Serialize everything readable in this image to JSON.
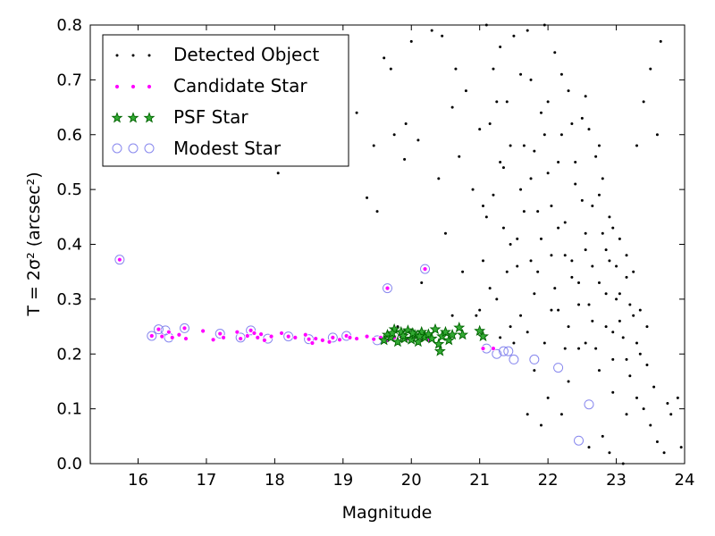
{
  "chart_data": {
    "type": "scatter",
    "xlabel": "Magnitude",
    "ylabel": "T = 2σ² (arcsec²)",
    "xlim": [
      15.3,
      24.0
    ],
    "ylim": [
      0.0,
      0.8
    ],
    "xticks": [
      16,
      17,
      18,
      19,
      20,
      21,
      22,
      23,
      24
    ],
    "yticks": [
      0.0,
      0.1,
      0.2,
      0.3,
      0.4,
      0.5,
      0.6,
      0.7,
      0.8
    ],
    "xtick_labels": [
      "16",
      "17",
      "18",
      "19",
      "20",
      "21",
      "22",
      "23",
      "24"
    ],
    "ytick_labels": [
      "0.0",
      "0.1",
      "0.2",
      "0.3",
      "0.4",
      "0.5",
      "0.6",
      "0.7",
      "0.8"
    ],
    "grid": false,
    "legend_position": "top-left",
    "colors": {
      "detected": "#000000",
      "candidate_fill": "#ff00ff",
      "psf_fill": "#33aa33",
      "psf_edge": "#006400",
      "modest_edge": "#8888ee"
    },
    "series": [
      {
        "name": "Detected Object",
        "marker": "dot",
        "points": [
          [
            18.05,
            0.53
          ],
          [
            19.2,
            0.64
          ],
          [
            19.35,
            0.485
          ],
          [
            19.45,
            0.58
          ],
          [
            19.5,
            0.46
          ],
          [
            19.6,
            0.74
          ],
          [
            19.7,
            0.72
          ],
          [
            19.75,
            0.6
          ],
          [
            19.9,
            0.555
          ],
          [
            19.92,
            0.62
          ],
          [
            20.0,
            0.77
          ],
          [
            20.1,
            0.59
          ],
          [
            20.15,
            0.33
          ],
          [
            20.3,
            0.79
          ],
          [
            20.4,
            0.52
          ],
          [
            20.5,
            0.42
          ],
          [
            20.6,
            0.65
          ],
          [
            20.65,
            0.72
          ],
          [
            20.7,
            0.56
          ],
          [
            20.75,
            0.35
          ],
          [
            20.9,
            0.5
          ],
          [
            20.95,
            0.27
          ],
          [
            21.05,
            0.37
          ],
          [
            21.1,
            0.45
          ],
          [
            21.15,
            0.62
          ],
          [
            21.2,
            0.72
          ],
          [
            21.25,
            0.3
          ],
          [
            21.3,
            0.55
          ],
          [
            21.35,
            0.43
          ],
          [
            21.4,
            0.66
          ],
          [
            21.45,
            0.25
          ],
          [
            21.5,
            0.78
          ],
          [
            21.55,
            0.36
          ],
          [
            21.6,
            0.5
          ],
          [
            21.65,
            0.58
          ],
          [
            21.7,
            0.24
          ],
          [
            21.75,
            0.7
          ],
          [
            21.8,
            0.31
          ],
          [
            21.85,
            0.46
          ],
          [
            21.9,
            0.64
          ],
          [
            21.95,
            0.22
          ],
          [
            22.0,
            0.53
          ],
          [
            22.05,
            0.38
          ],
          [
            22.1,
            0.75
          ],
          [
            22.15,
            0.28
          ],
          [
            22.2,
            0.6
          ],
          [
            22.25,
            0.44
          ],
          [
            22.3,
            0.68
          ],
          [
            22.35,
            0.34
          ],
          [
            22.4,
            0.51
          ],
          [
            22.45,
            0.21
          ],
          [
            22.5,
            0.63
          ],
          [
            22.55,
            0.39
          ],
          [
            22.6,
            0.29
          ],
          [
            22.65,
            0.47
          ],
          [
            22.7,
            0.56
          ],
          [
            22.75,
            0.33
          ],
          [
            22.8,
            0.42
          ],
          [
            22.85,
            0.25
          ],
          [
            22.9,
            0.37
          ],
          [
            22.95,
            0.19
          ],
          [
            23.0,
            0.3
          ],
          [
            23.05,
            0.41
          ],
          [
            23.1,
            0.23
          ],
          [
            23.15,
            0.34
          ],
          [
            23.2,
            0.16
          ],
          [
            23.25,
            0.27
          ],
          [
            23.3,
            0.12
          ],
          [
            23.35,
            0.2
          ],
          [
            23.4,
            0.1
          ],
          [
            23.45,
            0.25
          ],
          [
            23.5,
            0.07
          ],
          [
            23.55,
            0.14
          ],
          [
            23.6,
            0.04
          ],
          [
            23.65,
            0.77
          ],
          [
            23.7,
            0.02
          ],
          [
            23.75,
            0.11
          ],
          [
            23.8,
            0.09
          ],
          [
            23.9,
            0.12
          ],
          [
            23.95,
            0.03
          ],
          [
            23.5,
            0.72
          ],
          [
            23.4,
            0.66
          ],
          [
            23.6,
            0.6
          ],
          [
            23.3,
            0.58
          ],
          [
            22.2,
            0.09
          ],
          [
            22.6,
            0.03
          ],
          [
            22.8,
            0.05
          ],
          [
            21.7,
            0.09
          ],
          [
            22.0,
            0.12
          ],
          [
            21.9,
            0.07
          ],
          [
            23.1,
            0.0
          ],
          [
            22.9,
            0.02
          ],
          [
            21.8,
            0.17
          ],
          [
            22.3,
            0.15
          ],
          [
            20.45,
            0.78
          ],
          [
            20.8,
            0.68
          ],
          [
            21.0,
            0.61
          ],
          [
            21.2,
            0.49
          ],
          [
            21.4,
            0.35
          ],
          [
            21.6,
            0.27
          ],
          [
            21.9,
            0.41
          ],
          [
            22.1,
            0.32
          ],
          [
            22.3,
            0.25
          ],
          [
            22.5,
            0.48
          ],
          [
            22.7,
            0.21
          ],
          [
            22.9,
            0.45
          ],
          [
            23.0,
            0.36
          ],
          [
            23.2,
            0.29
          ],
          [
            23.3,
            0.22
          ],
          [
            23.45,
            0.18
          ],
          [
            22.4,
            0.55
          ],
          [
            22.6,
            0.61
          ],
          [
            22.8,
            0.52
          ],
          [
            21.3,
            0.76
          ],
          [
            21.6,
            0.71
          ],
          [
            21.8,
            0.57
          ],
          [
            22.0,
            0.66
          ],
          [
            22.2,
            0.71
          ],
          [
            19.8,
            0.25
          ],
          [
            20.6,
            0.27
          ],
          [
            21.0,
            0.28
          ],
          [
            21.3,
            0.23
          ],
          [
            21.5,
            0.22
          ],
          [
            21.1,
            0.8
          ],
          [
            21.7,
            0.79
          ],
          [
            21.95,
            0.8
          ],
          [
            21.25,
            0.66
          ],
          [
            21.55,
            0.41
          ],
          [
            21.75,
            0.52
          ],
          [
            22.05,
            0.47
          ],
          [
            22.25,
            0.38
          ],
          [
            22.45,
            0.29
          ],
          [
            22.65,
            0.36
          ],
          [
            22.85,
            0.31
          ],
          [
            23.05,
            0.26
          ],
          [
            23.25,
            0.35
          ],
          [
            22.15,
            0.55
          ],
          [
            22.35,
            0.62
          ],
          [
            22.55,
            0.42
          ],
          [
            22.75,
            0.49
          ],
          [
            22.95,
            0.24
          ],
          [
            23.15,
            0.19
          ],
          [
            23.35,
            0.28
          ],
          [
            21.45,
            0.58
          ],
          [
            21.65,
            0.46
          ],
          [
            21.85,
            0.35
          ],
          [
            22.05,
            0.28
          ],
          [
            22.25,
            0.21
          ],
          [
            22.45,
            0.33
          ],
          [
            22.65,
            0.26
          ],
          [
            22.85,
            0.39
          ],
          [
            23.05,
            0.31
          ],
          [
            21.05,
            0.47
          ],
          [
            21.35,
            0.54
          ],
          [
            21.95,
            0.6
          ],
          [
            22.55,
            0.67
          ],
          [
            22.75,
            0.58
          ],
          [
            22.95,
            0.43
          ],
          [
            23.15,
            0.38
          ],
          [
            21.15,
            0.32
          ],
          [
            21.45,
            0.4
          ],
          [
            21.75,
            0.37
          ],
          [
            22.15,
            0.43
          ],
          [
            22.35,
            0.37
          ],
          [
            22.55,
            0.22
          ],
          [
            22.75,
            0.17
          ],
          [
            22.95,
            0.13
          ],
          [
            23.15,
            0.09
          ]
        ]
      },
      {
        "name": "Candidate Star",
        "marker": "circle",
        "points": [
          [
            16.2,
            0.233
          ],
          [
            16.3,
            0.245
          ],
          [
            16.35,
            0.232
          ],
          [
            16.45,
            0.24
          ],
          [
            16.5,
            0.23
          ],
          [
            16.6,
            0.235
          ],
          [
            16.68,
            0.247
          ],
          [
            16.7,
            0.228
          ],
          [
            16.95,
            0.242
          ],
          [
            17.1,
            0.226
          ],
          [
            17.2,
            0.237
          ],
          [
            17.25,
            0.23
          ],
          [
            17.45,
            0.24
          ],
          [
            17.5,
            0.228
          ],
          [
            17.6,
            0.233
          ],
          [
            17.65,
            0.243
          ],
          [
            17.7,
            0.238
          ],
          [
            17.75,
            0.23
          ],
          [
            17.8,
            0.236
          ],
          [
            17.85,
            0.225
          ],
          [
            17.95,
            0.232
          ],
          [
            18.1,
            0.238
          ],
          [
            18.2,
            0.232
          ],
          [
            18.3,
            0.23
          ],
          [
            18.45,
            0.235
          ],
          [
            18.5,
            0.227
          ],
          [
            18.55,
            0.22
          ],
          [
            18.6,
            0.228
          ],
          [
            18.7,
            0.225
          ],
          [
            18.8,
            0.222
          ],
          [
            18.85,
            0.23
          ],
          [
            18.95,
            0.226
          ],
          [
            19.05,
            0.233
          ],
          [
            19.1,
            0.23
          ],
          [
            19.2,
            0.228
          ],
          [
            19.35,
            0.232
          ],
          [
            19.45,
            0.227
          ],
          [
            19.55,
            0.23
          ],
          [
            19.65,
            0.225
          ],
          [
            19.75,
            0.23
          ],
          [
            19.85,
            0.232
          ],
          [
            19.95,
            0.228
          ],
          [
            20.05,
            0.233
          ],
          [
            20.15,
            0.228
          ],
          [
            20.25,
            0.225
          ],
          [
            21.05,
            0.21
          ],
          [
            21.2,
            0.21
          ],
          [
            15.73,
            0.372
          ],
          [
            19.65,
            0.32
          ],
          [
            20.2,
            0.355
          ]
        ]
      },
      {
        "name": "PSF Star",
        "marker": "star",
        "points": [
          [
            19.6,
            0.225
          ],
          [
            19.65,
            0.235
          ],
          [
            19.7,
            0.23
          ],
          [
            19.75,
            0.245
          ],
          [
            19.8,
            0.222
          ],
          [
            19.85,
            0.24
          ],
          [
            19.9,
            0.228
          ],
          [
            19.95,
            0.243
          ],
          [
            20.0,
            0.226
          ],
          [
            20.05,
            0.235
          ],
          [
            20.1,
            0.222
          ],
          [
            20.15,
            0.24
          ],
          [
            20.2,
            0.23
          ],
          [
            20.25,
            0.236
          ],
          [
            20.3,
            0.228
          ],
          [
            20.35,
            0.245
          ],
          [
            20.4,
            0.218
          ],
          [
            20.45,
            0.232
          ],
          [
            20.5,
            0.24
          ],
          [
            20.55,
            0.225
          ],
          [
            20.6,
            0.235
          ],
          [
            20.7,
            0.248
          ],
          [
            20.75,
            0.235
          ],
          [
            21.0,
            0.242
          ],
          [
            21.05,
            0.232
          ],
          [
            19.72,
            0.238
          ],
          [
            19.88,
            0.233
          ],
          [
            20.02,
            0.238
          ],
          [
            20.12,
            0.232
          ],
          [
            20.42,
            0.205
          ]
        ]
      },
      {
        "name": "Modest Star",
        "marker": "ring",
        "points": [
          [
            15.73,
            0.372
          ],
          [
            16.2,
            0.233
          ],
          [
            16.3,
            0.245
          ],
          [
            16.4,
            0.243
          ],
          [
            16.45,
            0.23
          ],
          [
            16.68,
            0.247
          ],
          [
            17.2,
            0.237
          ],
          [
            17.5,
            0.23
          ],
          [
            17.65,
            0.243
          ],
          [
            17.9,
            0.228
          ],
          [
            18.2,
            0.232
          ],
          [
            18.5,
            0.227
          ],
          [
            18.85,
            0.23
          ],
          [
            19.05,
            0.233
          ],
          [
            19.5,
            0.225
          ],
          [
            19.65,
            0.32
          ],
          [
            20.2,
            0.355
          ],
          [
            21.25,
            0.2
          ],
          [
            21.35,
            0.205
          ],
          [
            21.42,
            0.205
          ],
          [
            21.5,
            0.19
          ],
          [
            21.8,
            0.19
          ],
          [
            22.15,
            0.175
          ],
          [
            22.45,
            0.042
          ],
          [
            22.6,
            0.108
          ],
          [
            21.1,
            0.21
          ]
        ]
      }
    ]
  }
}
